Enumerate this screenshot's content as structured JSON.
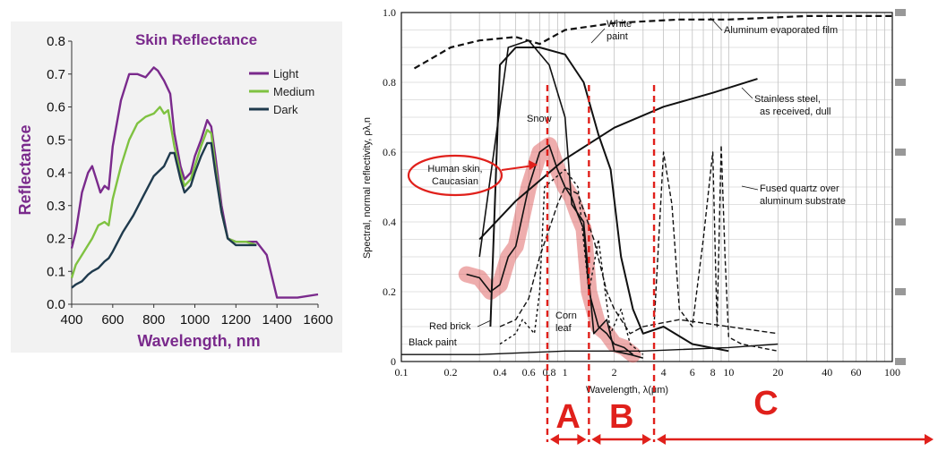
{
  "colors": {
    "light": "#7a2a8c",
    "medium": "#7fc241",
    "dark": "#1f3a4d",
    "accent_red": "#e0201b",
    "skin_band": "#e06a6a"
  },
  "left_chart": {
    "chart_data": {
      "type": "line",
      "title": "Skin Reflectance",
      "xlabel": "Wavelength, nm",
      "ylabel": "Reflectance",
      "xlim": [
        400,
        1600
      ],
      "ylim": [
        0.0,
        0.8
      ],
      "x_ticks": [
        "400",
        "600",
        "800",
        "1000",
        "1200",
        "1400",
        "1600"
      ],
      "y_ticks": [
        "0.0",
        "0.1",
        "0.2",
        "0.3",
        "0.4",
        "0.5",
        "0.6",
        "0.7",
        "0.8"
      ],
      "legend_position": "top-right",
      "series": [
        {
          "name": "Light",
          "x": [
            400,
            420,
            450,
            480,
            500,
            520,
            540,
            560,
            580,
            600,
            640,
            680,
            720,
            760,
            800,
            820,
            850,
            880,
            900,
            930,
            950,
            980,
            1000,
            1030,
            1060,
            1080,
            1100,
            1130,
            1160,
            1200,
            1250,
            1300,
            1350,
            1400,
            1500,
            1600
          ],
          "y": [
            0.17,
            0.22,
            0.34,
            0.4,
            0.42,
            0.38,
            0.34,
            0.36,
            0.35,
            0.48,
            0.62,
            0.7,
            0.7,
            0.69,
            0.72,
            0.71,
            0.68,
            0.64,
            0.52,
            0.42,
            0.38,
            0.4,
            0.45,
            0.5,
            0.56,
            0.54,
            0.45,
            0.3,
            0.2,
            0.19,
            0.19,
            0.19,
            0.15,
            0.02,
            0.02,
            0.03
          ]
        },
        {
          "name": "Medium",
          "x": [
            400,
            420,
            450,
            480,
            500,
            530,
            560,
            580,
            600,
            640,
            680,
            720,
            760,
            800,
            830,
            850,
            870,
            900,
            930,
            950,
            980,
            1000,
            1030,
            1060,
            1080,
            1100,
            1130,
            1160,
            1200,
            1250,
            1300
          ],
          "y": [
            0.08,
            0.12,
            0.15,
            0.18,
            0.2,
            0.24,
            0.25,
            0.24,
            0.32,
            0.42,
            0.5,
            0.55,
            0.57,
            0.58,
            0.6,
            0.58,
            0.59,
            0.48,
            0.4,
            0.36,
            0.38,
            0.42,
            0.48,
            0.53,
            0.52,
            0.42,
            0.28,
            0.2,
            0.19,
            0.19,
            0.18
          ]
        },
        {
          "name": "Dark",
          "x": [
            400,
            420,
            450,
            480,
            500,
            530,
            560,
            580,
            600,
            650,
            700,
            750,
            800,
            850,
            880,
            900,
            930,
            950,
            980,
            1000,
            1030,
            1060,
            1080,
            1100,
            1130,
            1160,
            1200,
            1250,
            1300
          ],
          "y": [
            0.05,
            0.06,
            0.07,
            0.09,
            0.1,
            0.11,
            0.13,
            0.14,
            0.16,
            0.22,
            0.27,
            0.33,
            0.39,
            0.42,
            0.46,
            0.46,
            0.38,
            0.34,
            0.36,
            0.4,
            0.45,
            0.49,
            0.49,
            0.4,
            0.28,
            0.2,
            0.18,
            0.18,
            0.18
          ]
        }
      ]
    }
  },
  "right_chart": {
    "chart_data": {
      "type": "line",
      "title": "",
      "xlabel": "Wavelength, λ(μm)",
      "ylabel": "Spectral, normal reflectivity, ρλ,n",
      "x_scale": "log",
      "xlim": [
        0.1,
        100
      ],
      "ylim": [
        0.0,
        1.0
      ],
      "x_ticks": [
        "0.1",
        "0.2",
        "0.4",
        "0.6",
        "0.8",
        "1",
        "2",
        "4",
        "6",
        "8",
        "10",
        "20",
        "40",
        "60",
        "100"
      ],
      "y_ticks": [
        "0",
        "0.2",
        "0.4",
        "0.6",
        "0.8",
        "1.0"
      ],
      "series": [
        {
          "name": "Aluminum evaporated film",
          "x": [
            0.12,
            0.2,
            0.3,
            0.5,
            0.7,
            1.0,
            2.0,
            5.0,
            10,
            30,
            100
          ],
          "y": [
            0.84,
            0.9,
            0.92,
            0.93,
            0.91,
            0.95,
            0.97,
            0.98,
            0.98,
            0.99,
            0.99
          ]
        },
        {
          "name": "White paint",
          "x": [
            0.35,
            0.4,
            0.5,
            0.7,
            1.0,
            1.3,
            1.6,
            1.9,
            2.2,
            2.6,
            3.0,
            4.0,
            6.0,
            10
          ],
          "y": [
            0.1,
            0.85,
            0.9,
            0.9,
            0.88,
            0.8,
            0.65,
            0.55,
            0.3,
            0.15,
            0.08,
            0.1,
            0.05,
            0.03
          ]
        },
        {
          "name": "Stainless steel, as received, dull",
          "x": [
            0.3,
            0.5,
            1.0,
            2.0,
            4.0,
            8.0,
            15.0
          ],
          "y": [
            0.35,
            0.46,
            0.58,
            0.67,
            0.73,
            0.77,
            0.81
          ]
        },
        {
          "name": "Fused quartz over aluminum substrate",
          "x": [
            3.5,
            4.0,
            4.5,
            5.0,
            6.0,
            7.0,
            8.0,
            8.5,
            9.0,
            9.5,
            10,
            12,
            20
          ],
          "y": [
            0.1,
            0.6,
            0.45,
            0.15,
            0.1,
            0.35,
            0.6,
            0.1,
            0.62,
            0.3,
            0.07,
            0.05,
            0.03
          ]
        },
        {
          "name": "Snow",
          "x": [
            0.3,
            0.45,
            0.6,
            0.8,
            1.0,
            1.1,
            1.3,
            1.5,
            1.8,
            2.0,
            2.5,
            3.0
          ],
          "y": [
            0.3,
            0.9,
            0.92,
            0.85,
            0.7,
            0.45,
            0.4,
            0.08,
            0.12,
            0.03,
            0.02,
            0.01
          ]
        },
        {
          "name": "Human skin, Caucasian",
          "x": [
            0.25,
            0.3,
            0.35,
            0.4,
            0.45,
            0.5,
            0.6,
            0.7,
            0.8,
            0.9,
            1.0,
            1.1,
            1.2,
            1.3,
            1.4,
            1.6,
            1.8,
            2.0,
            2.3,
            2.6
          ],
          "y": [
            0.25,
            0.24,
            0.2,
            0.22,
            0.3,
            0.33,
            0.5,
            0.6,
            0.62,
            0.55,
            0.5,
            0.47,
            0.42,
            0.38,
            0.2,
            0.1,
            0.08,
            0.05,
            0.04,
            0.02
          ]
        },
        {
          "name": "Red brick",
          "x": [
            0.4,
            0.5,
            0.6,
            0.7,
            0.9,
            1.0,
            1.2,
            1.5,
            1.8,
            2.0,
            2.5,
            3.0,
            5.0,
            10,
            20
          ],
          "y": [
            0.1,
            0.12,
            0.18,
            0.3,
            0.45,
            0.5,
            0.48,
            0.35,
            0.2,
            0.15,
            0.08,
            0.1,
            0.12,
            0.1,
            0.08
          ]
        },
        {
          "name": "Corn leaf",
          "x": [
            0.4,
            0.5,
            0.55,
            0.65,
            0.7,
            0.75,
            1.0,
            1.2,
            1.4,
            1.6,
            1.9,
            2.2,
            2.5,
            3.0
          ],
          "y": [
            0.05,
            0.08,
            0.12,
            0.08,
            0.2,
            0.5,
            0.55,
            0.5,
            0.2,
            0.35,
            0.08,
            0.15,
            0.05,
            0.02
          ]
        },
        {
          "name": "Black paint",
          "x": [
            0.1,
            0.3,
            1.0,
            3.0,
            10,
            20
          ],
          "y": [
            0.02,
            0.02,
            0.03,
            0.03,
            0.04,
            0.05
          ]
        }
      ],
      "annotations": [
        {
          "text": "Human skin,",
          "text2": "Caucasian"
        },
        {
          "text": "White",
          "text2": "paint"
        },
        {
          "text": "Snow"
        },
        {
          "text": "Corn",
          "text2": "leaf"
        },
        {
          "text": "Red brick"
        },
        {
          "text": "Black paint"
        },
        {
          "text": "Aluminum evaporated film"
        },
        {
          "text": "Stainless steel,",
          "text2": "as received, dull"
        },
        {
          "text": "Fused quartz over",
          "text2": "aluminum substrate"
        }
      ],
      "regions": [
        {
          "label": "A",
          "from": 0.78,
          "to": 1.4
        },
        {
          "label": "B",
          "from": 1.4,
          "to": 3.5
        },
        {
          "label": "C",
          "from": 3.5,
          "to": 100
        }
      ]
    }
  }
}
